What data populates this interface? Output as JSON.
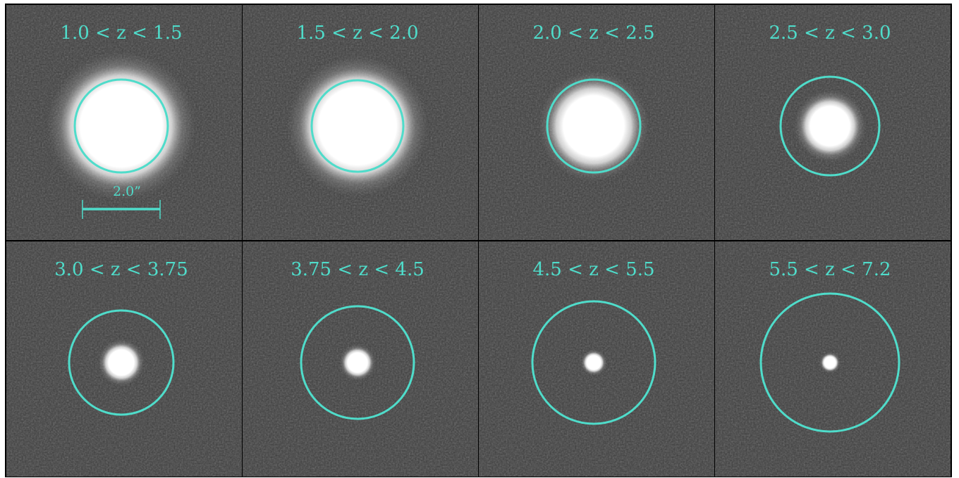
{
  "panels": [
    {
      "label": "1.0 < z < 1.5"
    },
    {
      "label": "1.5 < z < 2.0"
    },
    {
      "label": "2.0 < z < 2.5"
    },
    {
      "label": "2.5 < z < 3.0"
    },
    {
      "label": "3.0 < z < 3.75"
    },
    {
      "label": "3.75 < z < 4.5"
    },
    {
      "label": "4.5 < z < 5.5"
    },
    {
      "label": "5.5 < z < 7.2"
    }
  ],
  "scale_bar": {
    "label": "2.0”"
  }
}
